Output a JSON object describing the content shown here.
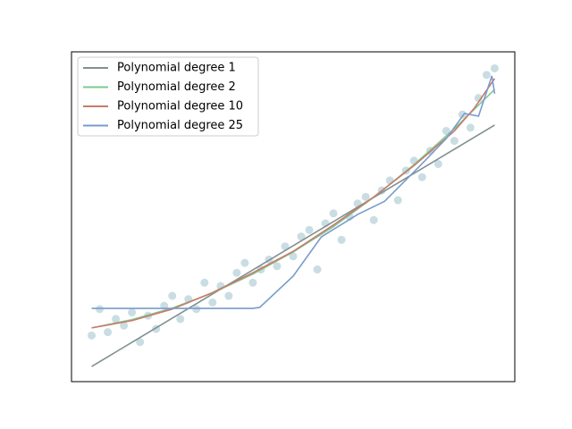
{
  "chart_data": {
    "type": "scatter-lines",
    "xlim": [
      -0.5,
      10.5
    ],
    "ylim": [
      0,
      10
    ],
    "scatter": {
      "color": "#c9dde3",
      "x": [
        0,
        0.2,
        0.4,
        0.6,
        0.8,
        1.0,
        1.2,
        1.4,
        1.6,
        1.8,
        2.0,
        2.2,
        2.4,
        2.6,
        2.8,
        3.0,
        3.2,
        3.4,
        3.6,
        3.8,
        4.0,
        4.2,
        4.4,
        4.6,
        4.8,
        5.0,
        5.2,
        5.4,
        5.6,
        5.8,
        6.0,
        6.2,
        6.4,
        6.6,
        6.8,
        7.0,
        7.2,
        7.4,
        7.6,
        7.8,
        8.0,
        8.2,
        8.4,
        8.6,
        8.8,
        9.0,
        9.2,
        9.4,
        9.6,
        9.8,
        10.0
      ],
      "y": [
        1.4,
        2.2,
        1.5,
        1.9,
        1.7,
        2.1,
        1.2,
        2.0,
        1.6,
        2.3,
        2.6,
        1.9,
        2.5,
        2.2,
        3.0,
        2.4,
        2.9,
        2.6,
        3.3,
        3.6,
        3.0,
        3.4,
        3.7,
        3.5,
        4.1,
        3.8,
        4.4,
        4.6,
        3.4,
        4.8,
        5.1,
        4.3,
        5.0,
        5.4,
        5.6,
        4.9,
        5.8,
        6.1,
        5.5,
        6.4,
        6.7,
        6.2,
        7.0,
        6.6,
        7.6,
        7.3,
        8.1,
        7.7,
        8.6,
        9.3,
        9.5
      ]
    },
    "series": [
      {
        "name": "Polynomial degree 1",
        "color": "#7f9191",
        "x": [
          0,
          10
        ],
        "values": [
          0.46,
          7.78
        ]
      },
      {
        "name": "Polynomial degree 2",
        "color": "#7fc98f",
        "x": [
          0,
          1,
          2,
          3,
          4,
          5,
          6,
          7,
          8,
          9,
          10
        ],
        "values": [
          1.63,
          1.88,
          2.23,
          2.69,
          3.26,
          3.93,
          4.7,
          5.59,
          6.58,
          7.67,
          8.86
        ]
      },
      {
        "name": "Polynomial degree 10",
        "color": "#c97a6a",
        "x": [
          0,
          1,
          2,
          3,
          4,
          5,
          6,
          7,
          8,
          9,
          9.5,
          10
        ],
        "values": [
          1.63,
          1.85,
          2.2,
          2.7,
          3.3,
          3.95,
          4.75,
          5.6,
          6.55,
          7.6,
          8.3,
          9.19
        ]
      },
      {
        "name": "Polynomial degree 25",
        "color": "#7a9ccc",
        "x": [
          0,
          1,
          2,
          3,
          4,
          4.17,
          5,
          5.7,
          6.6,
          7.27,
          8.16,
          8.8,
          9.25,
          9.6,
          9.82,
          9.93,
          10
        ],
        "values": [
          2.22,
          2.22,
          2.22,
          2.22,
          2.22,
          2.25,
          3.2,
          4.39,
          5.07,
          5.47,
          6.56,
          7.37,
          8.13,
          8.05,
          8.86,
          9.27,
          8.73
        ]
      }
    ]
  }
}
